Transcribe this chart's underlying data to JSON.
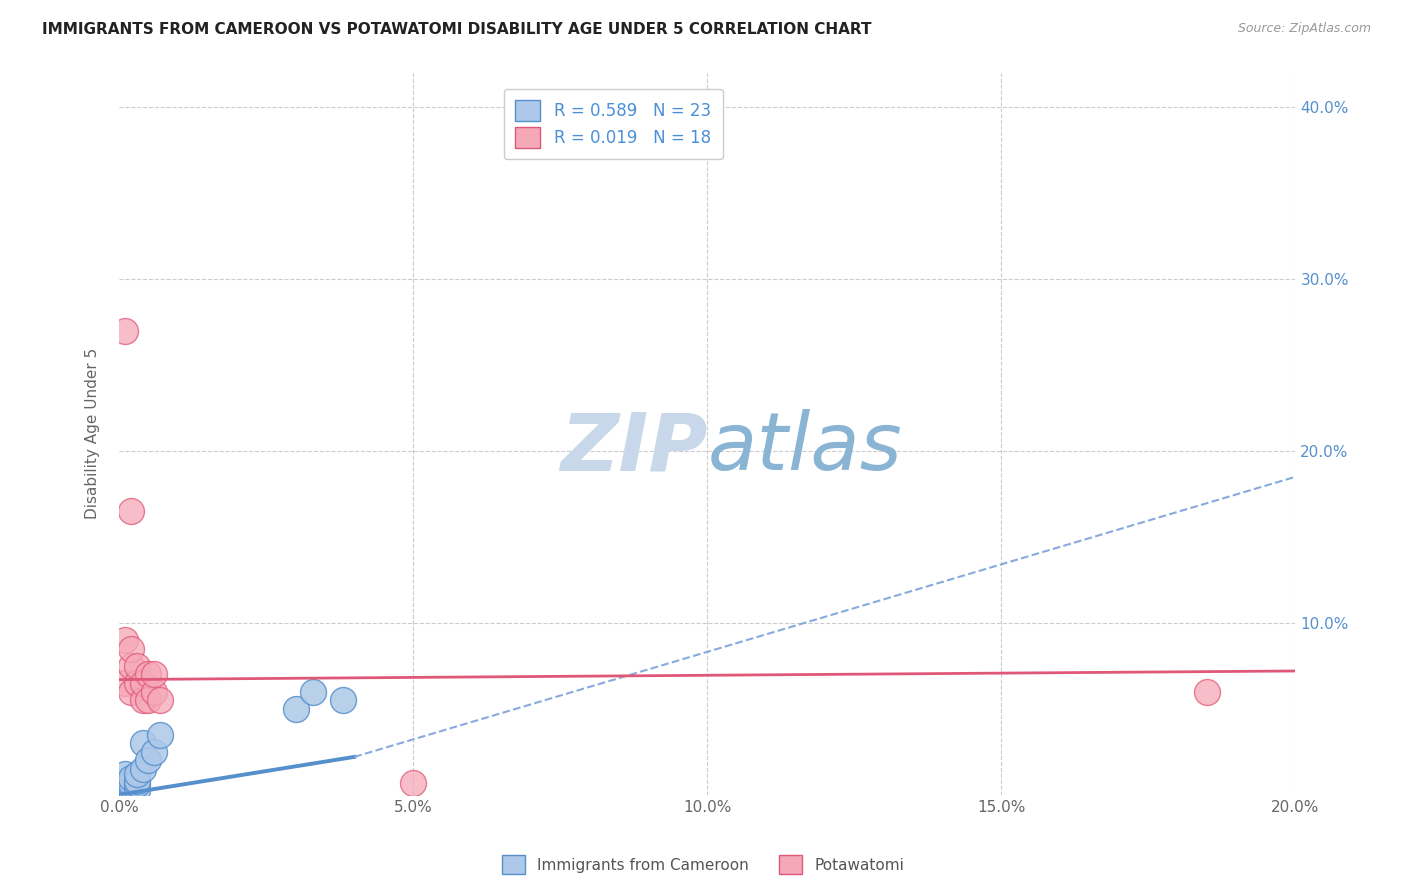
{
  "title": "IMMIGRANTS FROM CAMEROON VS POTAWATOMI DISABILITY AGE UNDER 5 CORRELATION CHART",
  "source": "Source: ZipAtlas.com",
  "ylabel": "Disability Age Under 5",
  "xlim": [
    0.0,
    0.2
  ],
  "ylim": [
    0.0,
    0.42
  ],
  "xticks": [
    0.0,
    0.05,
    0.1,
    0.15,
    0.2
  ],
  "xtick_labels": [
    "0.0%",
    "5.0%",
    "10.0%",
    "15.0%",
    "20.0%"
  ],
  "yticks": [
    0.0,
    0.1,
    0.2,
    0.3,
    0.4
  ],
  "ytick_labels_right": [
    "",
    "10.0%",
    "20.0%",
    "30.0%",
    "40.0%"
  ],
  "blue_R": 0.589,
  "blue_N": 23,
  "pink_R": 0.019,
  "pink_N": 18,
  "blue_color": "#adc8e8",
  "pink_color": "#f5a8b8",
  "blue_line_color": "#5590cc",
  "pink_line_color": "#e05878",
  "blue_trend_color": "#88aadd",
  "watermark": "ZIPatlas",
  "watermark_zip_color": "#c8d8ea",
  "watermark_atlas_color": "#8ab4d4",
  "legend_label_blue": "Immigrants from Cameroon",
  "legend_label_pink": "Potawatomi",
  "blue_scatter_x": [
    0.0005,
    0.001,
    0.001,
    0.001,
    0.001,
    0.001,
    0.002,
    0.002,
    0.002,
    0.002,
    0.002,
    0.003,
    0.003,
    0.003,
    0.003,
    0.004,
    0.004,
    0.005,
    0.006,
    0.007,
    0.03,
    0.033,
    0.038
  ],
  "blue_scatter_y": [
    0.002,
    0.002,
    0.004,
    0.005,
    0.008,
    0.012,
    0.002,
    0.003,
    0.005,
    0.007,
    0.01,
    0.003,
    0.006,
    0.008,
    0.012,
    0.015,
    0.03,
    0.02,
    0.025,
    0.035,
    0.05,
    0.06,
    0.055
  ],
  "pink_scatter_x": [
    0.001,
    0.001,
    0.002,
    0.002,
    0.002,
    0.003,
    0.003,
    0.004,
    0.004,
    0.005,
    0.005,
    0.006,
    0.006,
    0.007,
    0.05,
    0.001,
    0.002,
    0.185
  ],
  "pink_scatter_y": [
    0.065,
    0.09,
    0.06,
    0.075,
    0.085,
    0.065,
    0.075,
    0.055,
    0.065,
    0.055,
    0.07,
    0.06,
    0.07,
    0.055,
    0.007,
    0.27,
    0.165,
    0.06
  ],
  "blue_trend_x_start": 0.0,
  "blue_trend_x_solid_end": 0.04,
  "blue_trend_x_dash_end": 0.2,
  "blue_trend_y_at_0": 0.0,
  "blue_trend_y_at_004": 0.022,
  "blue_trend_y_at_020": 0.185,
  "pink_trend_y_at_0": 0.067,
  "pink_trend_y_at_020": 0.072
}
